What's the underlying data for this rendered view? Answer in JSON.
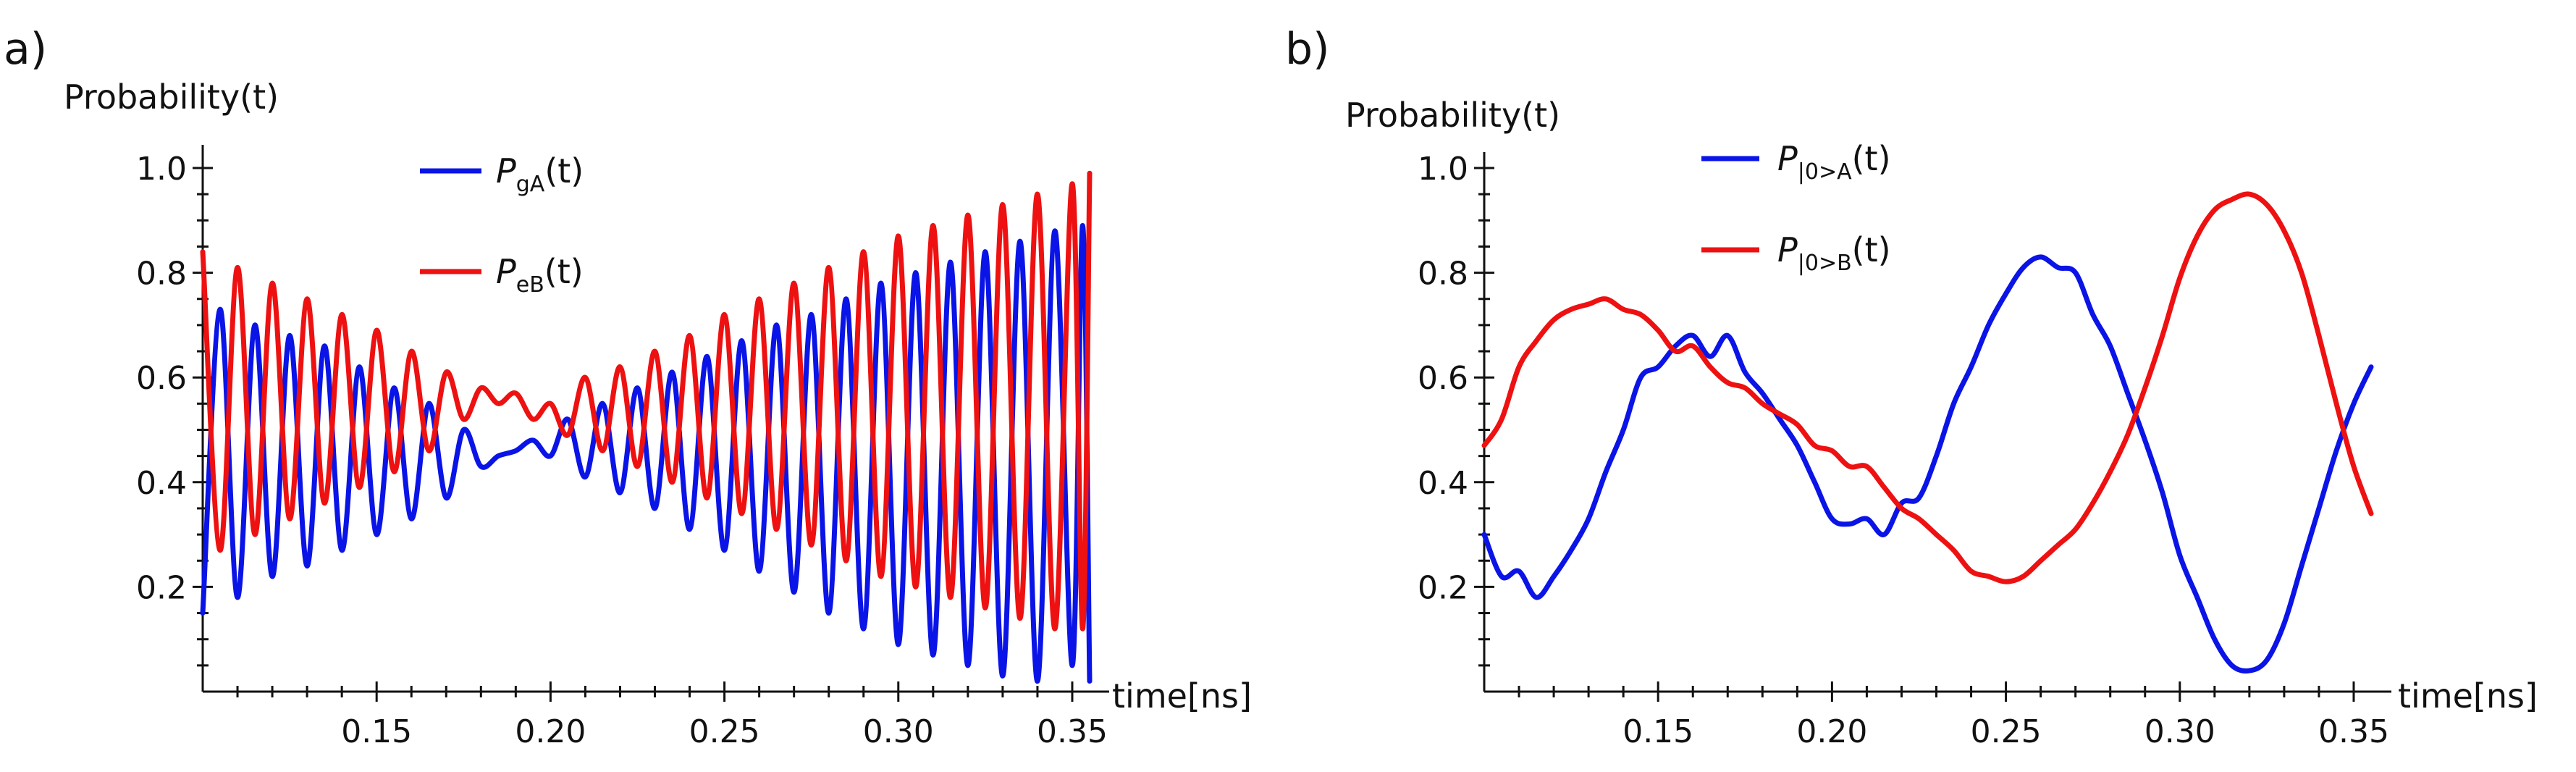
{
  "chart_data": [
    {
      "type": "line",
      "panel_label": "a)",
      "ylabel": "Probability(t)",
      "xlabel": "time[ns]",
      "xlim": [
        0.1,
        0.355
      ],
      "ylim": [
        0,
        1.0
      ],
      "x_ticks": [
        "0.15",
        "0.20",
        "0.25",
        "0.30",
        "0.35"
      ],
      "x_tick_values": [
        0.15,
        0.2,
        0.25,
        0.3,
        0.35
      ],
      "y_ticks": [
        "0.2",
        "0.4",
        "0.6",
        "0.8",
        "1.0"
      ],
      "y_tick_values": [
        0.2,
        0.4,
        0.6,
        0.8,
        1.0
      ],
      "legend_position": "top-center",
      "series": [
        {
          "name": "P_gA(t)",
          "symbol": "P",
          "subscript": "gA",
          "suffix": "(t)",
          "color": "#0a14e6",
          "x": [
            0.1,
            0.105,
            0.11,
            0.115,
            0.12,
            0.125,
            0.13,
            0.135,
            0.14,
            0.145,
            0.15,
            0.155,
            0.16,
            0.165,
            0.17,
            0.175,
            0.18,
            0.185,
            0.19,
            0.195,
            0.2,
            0.205,
            0.21,
            0.215,
            0.22,
            0.225,
            0.23,
            0.235,
            0.24,
            0.245,
            0.25,
            0.255,
            0.26,
            0.265,
            0.27,
            0.275,
            0.28,
            0.285,
            0.29,
            0.295,
            0.3,
            0.305,
            0.31,
            0.315,
            0.32,
            0.325,
            0.33,
            0.335,
            0.34,
            0.345,
            0.35,
            0.353,
            0.355
          ],
          "y": [
            0.15,
            0.73,
            0.18,
            0.7,
            0.22,
            0.68,
            0.24,
            0.66,
            0.27,
            0.62,
            0.3,
            0.58,
            0.33,
            0.55,
            0.37,
            0.5,
            0.43,
            0.45,
            0.46,
            0.48,
            0.45,
            0.52,
            0.41,
            0.55,
            0.38,
            0.58,
            0.35,
            0.61,
            0.31,
            0.64,
            0.27,
            0.67,
            0.23,
            0.7,
            0.19,
            0.72,
            0.15,
            0.75,
            0.12,
            0.78,
            0.09,
            0.8,
            0.07,
            0.82,
            0.05,
            0.84,
            0.03,
            0.86,
            0.02,
            0.88,
            0.05,
            0.89,
            0.02
          ]
        },
        {
          "name": "P_eB(t)",
          "symbol": "P",
          "subscript": "eB",
          "suffix": "(t)",
          "color": "#ee1111",
          "x": [
            0.1,
            0.105,
            0.11,
            0.115,
            0.12,
            0.125,
            0.13,
            0.135,
            0.14,
            0.145,
            0.15,
            0.155,
            0.16,
            0.165,
            0.17,
            0.175,
            0.18,
            0.185,
            0.19,
            0.195,
            0.2,
            0.205,
            0.21,
            0.215,
            0.22,
            0.225,
            0.23,
            0.235,
            0.24,
            0.245,
            0.25,
            0.255,
            0.26,
            0.265,
            0.27,
            0.275,
            0.28,
            0.285,
            0.29,
            0.295,
            0.3,
            0.305,
            0.31,
            0.315,
            0.32,
            0.325,
            0.33,
            0.335,
            0.34,
            0.345,
            0.35,
            0.353,
            0.355
          ],
          "y": [
            0.84,
            0.27,
            0.81,
            0.3,
            0.78,
            0.33,
            0.75,
            0.36,
            0.72,
            0.39,
            0.69,
            0.42,
            0.65,
            0.46,
            0.61,
            0.52,
            0.58,
            0.55,
            0.57,
            0.52,
            0.55,
            0.49,
            0.6,
            0.46,
            0.62,
            0.43,
            0.65,
            0.4,
            0.68,
            0.37,
            0.72,
            0.34,
            0.75,
            0.31,
            0.78,
            0.28,
            0.81,
            0.25,
            0.84,
            0.22,
            0.87,
            0.2,
            0.89,
            0.18,
            0.91,
            0.16,
            0.93,
            0.14,
            0.95,
            0.12,
            0.97,
            0.12,
            0.99
          ]
        }
      ]
    },
    {
      "type": "line",
      "panel_label": "b)",
      "ylabel": "Probability(t)",
      "xlabel": "time[ns]",
      "xlim": [
        0.1,
        0.355
      ],
      "ylim": [
        0,
        1.0
      ],
      "x_ticks": [
        "0.15",
        "0.20",
        "0.25",
        "0.30",
        "0.35"
      ],
      "x_tick_values": [
        0.15,
        0.2,
        0.25,
        0.3,
        0.35
      ],
      "y_ticks": [
        "0.2",
        "0.4",
        "0.6",
        "0.8",
        "1.0"
      ],
      "y_tick_values": [
        0.2,
        0.4,
        0.6,
        0.8,
        1.0
      ],
      "legend_position": "top-center",
      "series": [
        {
          "name": "P_|0>A(t)",
          "symbol": "P",
          "subscript": "|0>A",
          "suffix": "(t)",
          "color": "#0a14e6",
          "x": [
            0.1,
            0.105,
            0.11,
            0.115,
            0.12,
            0.125,
            0.13,
            0.135,
            0.14,
            0.145,
            0.15,
            0.155,
            0.16,
            0.165,
            0.17,
            0.175,
            0.18,
            0.185,
            0.19,
            0.195,
            0.2,
            0.205,
            0.21,
            0.215,
            0.22,
            0.225,
            0.23,
            0.235,
            0.24,
            0.245,
            0.25,
            0.255,
            0.26,
            0.265,
            0.27,
            0.275,
            0.28,
            0.285,
            0.29,
            0.295,
            0.3,
            0.305,
            0.31,
            0.315,
            0.32,
            0.325,
            0.33,
            0.335,
            0.34,
            0.345,
            0.35,
            0.355
          ],
          "y": [
            0.3,
            0.22,
            0.23,
            0.18,
            0.22,
            0.27,
            0.33,
            0.42,
            0.5,
            0.6,
            0.62,
            0.66,
            0.68,
            0.64,
            0.68,
            0.61,
            0.57,
            0.52,
            0.47,
            0.4,
            0.33,
            0.32,
            0.33,
            0.3,
            0.36,
            0.37,
            0.45,
            0.55,
            0.62,
            0.7,
            0.76,
            0.81,
            0.83,
            0.81,
            0.8,
            0.72,
            0.66,
            0.57,
            0.48,
            0.38,
            0.26,
            0.18,
            0.1,
            0.05,
            0.04,
            0.06,
            0.13,
            0.24,
            0.35,
            0.46,
            0.55,
            0.62
          ]
        },
        {
          "name": "P_|0>B(t)",
          "symbol": "P",
          "subscript": "|0>B",
          "suffix": "(t)",
          "color": "#ee1111",
          "x": [
            0.1,
            0.105,
            0.11,
            0.115,
            0.12,
            0.125,
            0.13,
            0.135,
            0.14,
            0.145,
            0.15,
            0.155,
            0.16,
            0.165,
            0.17,
            0.175,
            0.18,
            0.185,
            0.19,
            0.195,
            0.2,
            0.205,
            0.21,
            0.215,
            0.22,
            0.225,
            0.23,
            0.235,
            0.24,
            0.245,
            0.25,
            0.255,
            0.26,
            0.265,
            0.27,
            0.275,
            0.28,
            0.285,
            0.29,
            0.295,
            0.3,
            0.305,
            0.31,
            0.315,
            0.32,
            0.325,
            0.33,
            0.335,
            0.34,
            0.345,
            0.35,
            0.355
          ],
          "y": [
            0.47,
            0.52,
            0.62,
            0.67,
            0.71,
            0.73,
            0.74,
            0.75,
            0.73,
            0.72,
            0.69,
            0.65,
            0.66,
            0.62,
            0.59,
            0.58,
            0.55,
            0.53,
            0.51,
            0.47,
            0.46,
            0.43,
            0.43,
            0.39,
            0.35,
            0.33,
            0.3,
            0.27,
            0.23,
            0.22,
            0.21,
            0.22,
            0.25,
            0.28,
            0.31,
            0.36,
            0.42,
            0.49,
            0.58,
            0.68,
            0.79,
            0.87,
            0.92,
            0.94,
            0.95,
            0.93,
            0.88,
            0.8,
            0.68,
            0.55,
            0.43,
            0.34
          ]
        }
      ]
    }
  ]
}
